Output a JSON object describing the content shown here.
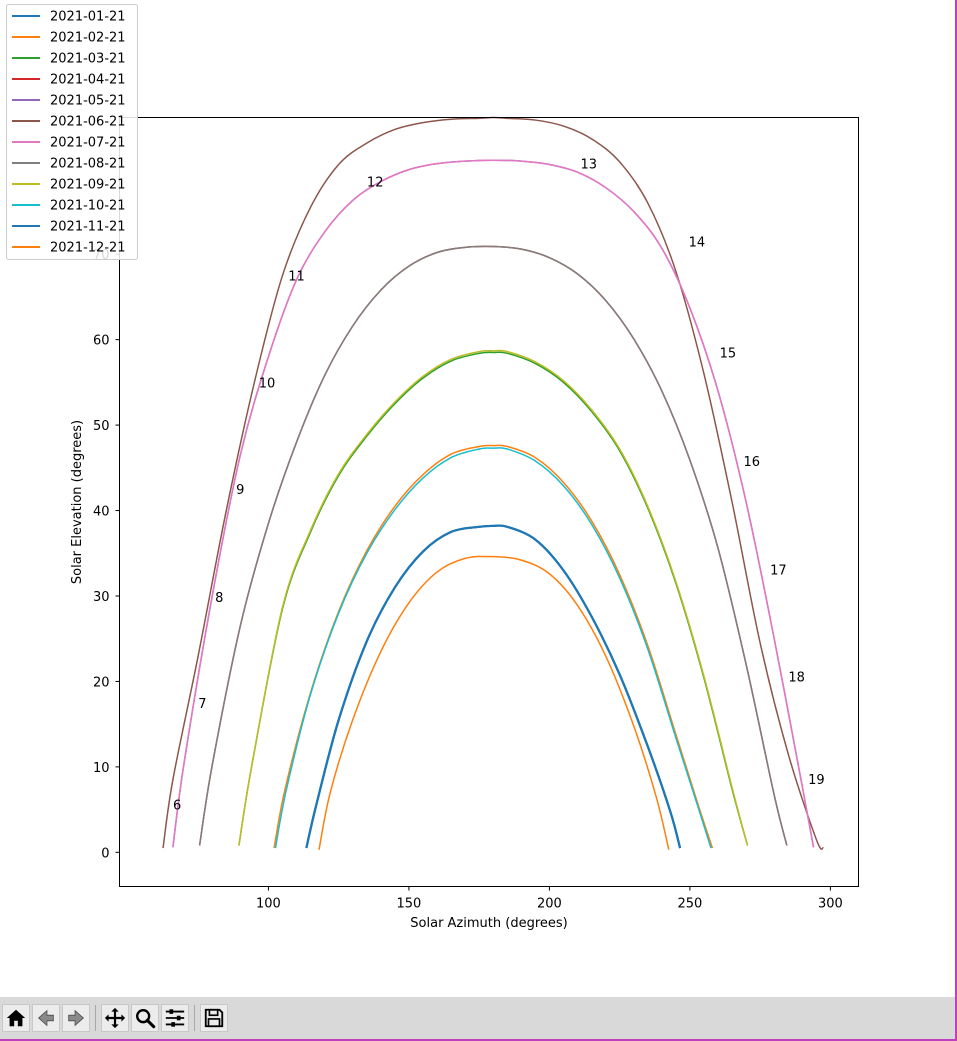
{
  "chart_data": {
    "type": "line",
    "xlabel": "Solar Azimuth (degrees)",
    "ylabel": "Solar Elevation (degrees)",
    "xlim": [
      47,
      310
    ],
    "ylim": [
      -4,
      86
    ],
    "xticks": [
      100,
      150,
      200,
      250,
      300
    ],
    "yticks": [
      0,
      10,
      20,
      30,
      40,
      50,
      60,
      70
    ],
    "grid": false,
    "legend_position": "upper-left, overlapping plot",
    "series": [
      {
        "name": "2021-01-21",
        "color": "#1f77b4",
        "x": [
          113.5,
          117,
          125,
          135,
          145,
          155,
          165,
          175,
          180,
          185,
          195,
          205,
          215,
          225,
          235,
          243,
          246.5
        ],
        "y": [
          0.5,
          5.5,
          15.5,
          24.7,
          31.0,
          35.2,
          37.5,
          38.1,
          38.2,
          38.1,
          36.6,
          33.0,
          27.6,
          20.8,
          12.4,
          4.8,
          0.5
        ]
      },
      {
        "name": "2021-02-21",
        "color": "#ff7f0e",
        "x": [
          102,
          106,
          115,
          125,
          135,
          145,
          155,
          165,
          175,
          180,
          185,
          195,
          205,
          215,
          225,
          235,
          245,
          253,
          258
        ],
        "y": [
          0.5,
          7.5,
          18.7,
          28.2,
          35.3,
          40.5,
          44.2,
          46.6,
          47.5,
          47.6,
          47.5,
          46.2,
          43.3,
          38.8,
          32.5,
          24.2,
          13.8,
          5.5,
          0.5
        ]
      },
      {
        "name": "2021-03-21",
        "color": "#2ca02c",
        "x": [
          89.5,
          94,
          105,
          115,
          125,
          135,
          145,
          155,
          165,
          175,
          180,
          185,
          195,
          205,
          215,
          225,
          235,
          245,
          255,
          265,
          270.5
        ],
        "y": [
          0.8,
          10.0,
          28.5,
          37.5,
          44.1,
          48.7,
          52.5,
          55.5,
          57.5,
          58.4,
          58.5,
          58.4,
          57.2,
          55.0,
          51.6,
          47.0,
          40.3,
          31.5,
          20.4,
          7.4,
          0.8
        ]
      },
      {
        "name": "2021-04-21",
        "color": "#d62728",
        "x": [
          75.5,
          80,
          90,
          100,
          110,
          120,
          130,
          140,
          150,
          160,
          170,
          180,
          190,
          200,
          210,
          220,
          230,
          240,
          250,
          260,
          270,
          280,
          284.5
        ],
        "y": [
          0.8,
          10.2,
          26.5,
          38.5,
          48.0,
          55.8,
          61.6,
          65.8,
          68.6,
          70.2,
          70.8,
          70.9,
          70.6,
          69.6,
          67.7,
          64.6,
          60.1,
          54.0,
          45.9,
          35.6,
          22.0,
          6.7,
          0.8
        ]
      },
      {
        "name": "2021-05-21",
        "color": "#9467bd",
        "x": [
          66,
          70,
          80,
          90,
          100,
          110,
          120,
          130,
          140,
          150,
          160,
          170,
          180,
          190,
          200,
          210,
          220,
          230,
          240,
          250,
          260,
          270,
          280,
          290,
          294
        ],
        "y": [
          0.6,
          10.5,
          30.0,
          46.5,
          58.0,
          67.0,
          72.6,
          76.3,
          78.5,
          79.9,
          80.6,
          80.9,
          81.0,
          80.9,
          80.5,
          79.6,
          77.8,
          75.0,
          70.7,
          63.7,
          54.0,
          41.0,
          25.0,
          7.7,
          0.6
        ]
      },
      {
        "name": "2021-06-21",
        "color": "#8c564b",
        "x": [
          62.5,
          66,
          75,
          85,
          95,
          105,
          115,
          125,
          135,
          145,
          155,
          165,
          175,
          180,
          185,
          195,
          205,
          215,
          225,
          235,
          245,
          255,
          265,
          275,
          285,
          295,
          297.5
        ],
        "y": [
          0.5,
          8.5,
          23.0,
          40.0,
          55.0,
          67.5,
          75.5,
          80.5,
          83.0,
          84.6,
          85.4,
          85.8,
          85.9,
          86.0,
          85.9,
          85.7,
          85.0,
          83.5,
          80.8,
          76.0,
          68.0,
          56.0,
          41.0,
          24.5,
          11.5,
          1.5,
          0.5
        ]
      },
      {
        "name": "2021-07-21",
        "color": "#e377c2",
        "x": [
          66,
          70,
          80,
          90,
          100,
          110,
          120,
          130,
          140,
          150,
          160,
          170,
          180,
          190,
          200,
          210,
          220,
          230,
          240,
          250,
          260,
          270,
          280,
          290,
          294
        ],
        "y": [
          0.6,
          10.5,
          30.0,
          46.5,
          58.0,
          67.0,
          72.6,
          76.3,
          78.5,
          79.9,
          80.6,
          80.9,
          81.0,
          80.9,
          80.5,
          79.6,
          77.8,
          75.0,
          70.7,
          63.7,
          54.0,
          41.0,
          25.0,
          7.7,
          0.6
        ]
      },
      {
        "name": "2021-08-21",
        "color": "#7f7f7f",
        "x": [
          75.5,
          80,
          90,
          100,
          110,
          120,
          130,
          140,
          150,
          160,
          170,
          180,
          190,
          200,
          210,
          220,
          230,
          240,
          250,
          260,
          270,
          280,
          284.5
        ],
        "y": [
          0.8,
          10.2,
          26.5,
          38.5,
          48.0,
          55.8,
          61.6,
          65.8,
          68.6,
          70.2,
          70.8,
          70.9,
          70.6,
          69.6,
          67.7,
          64.6,
          60.1,
          54.0,
          45.9,
          35.6,
          22.0,
          6.7,
          0.8
        ]
      },
      {
        "name": "2021-09-21",
        "color": "#bcbd22",
        "x": [
          89.5,
          94,
          105,
          115,
          125,
          135,
          145,
          155,
          165,
          175,
          180,
          185,
          195,
          205,
          215,
          225,
          235,
          245,
          255,
          265,
          270.5
        ],
        "y": [
          0.8,
          10.0,
          28.7,
          37.7,
          44.3,
          48.9,
          52.7,
          55.7,
          57.7,
          58.6,
          58.7,
          58.6,
          57.4,
          55.2,
          51.8,
          47.2,
          40.5,
          31.7,
          20.6,
          7.6,
          0.8
        ]
      },
      {
        "name": "2021-10-21",
        "color": "#17becf",
        "x": [
          102.5,
          106.5,
          115,
          125,
          135,
          145,
          155,
          165,
          175,
          180,
          185,
          195,
          205,
          215,
          225,
          235,
          245,
          253,
          257.5
        ],
        "y": [
          0.5,
          7.5,
          18.5,
          28.0,
          35.0,
          40.1,
          43.8,
          46.2,
          47.2,
          47.3,
          47.2,
          45.8,
          42.9,
          38.4,
          32.1,
          23.8,
          13.4,
          5.2,
          0.5
        ]
      },
      {
        "name": "2021-11-21",
        "color": "#1f77b4",
        "x": [
          113.5,
          117,
          125,
          135,
          145,
          155,
          165,
          175,
          180,
          185,
          195,
          205,
          215,
          225,
          235,
          243,
          246.5
        ],
        "y": [
          0.5,
          5.5,
          15.5,
          24.7,
          31.0,
          35.2,
          37.5,
          38.1,
          38.2,
          38.1,
          36.6,
          33.0,
          27.6,
          20.8,
          12.4,
          4.8,
          0.5
        ]
      },
      {
        "name": "2021-12-21",
        "color": "#ff7f0e",
        "x": [
          118,
          122,
          130,
          140,
          150,
          160,
          170,
          180,
          190,
          200,
          210,
          220,
          230,
          238,
          242.5
        ],
        "y": [
          0.3,
          7.0,
          15.5,
          23.5,
          29.2,
          32.8,
          34.4,
          34.6,
          34.2,
          32.6,
          28.9,
          23.0,
          14.8,
          6.5,
          0.3
        ]
      }
    ],
    "hour_labels": [
      {
        "text": "6",
        "x": 67.5,
        "y": 5.6
      },
      {
        "text": "7",
        "x": 76.5,
        "y": 17.5
      },
      {
        "text": "8",
        "x": 82.5,
        "y": 29.9
      },
      {
        "text": "9",
        "x": 90,
        "y": 42.5
      },
      {
        "text": "10",
        "x": 99.5,
        "y": 55.0
      },
      {
        "text": "11",
        "x": 110,
        "y": 67.5
      },
      {
        "text": "12",
        "x": 138,
        "y": 78.5
      },
      {
        "text": "13",
        "x": 214,
        "y": 80.6
      },
      {
        "text": "14",
        "x": 252.5,
        "y": 71.5
      },
      {
        "text": "15",
        "x": 263.5,
        "y": 58.5
      },
      {
        "text": "16",
        "x": 272,
        "y": 45.8
      },
      {
        "text": "17",
        "x": 281.5,
        "y": 33.1
      },
      {
        "text": "18",
        "x": 288,
        "y": 20.6
      },
      {
        "text": "19",
        "x": 295,
        "y": 8.6
      }
    ]
  },
  "toolbar": {
    "buttons": [
      {
        "name": "home-button",
        "icon": "home-icon"
      },
      {
        "name": "back-button",
        "icon": "back-arrow-icon"
      },
      {
        "name": "forward-button",
        "icon": "forward-arrow-icon"
      },
      {
        "name": "pan-button",
        "icon": "move-icon"
      },
      {
        "name": "zoom-button",
        "icon": "magnifier-icon"
      },
      {
        "name": "configure-subplots-button",
        "icon": "sliders-icon"
      },
      {
        "name": "save-button",
        "icon": "floppy-disk-icon"
      }
    ]
  }
}
